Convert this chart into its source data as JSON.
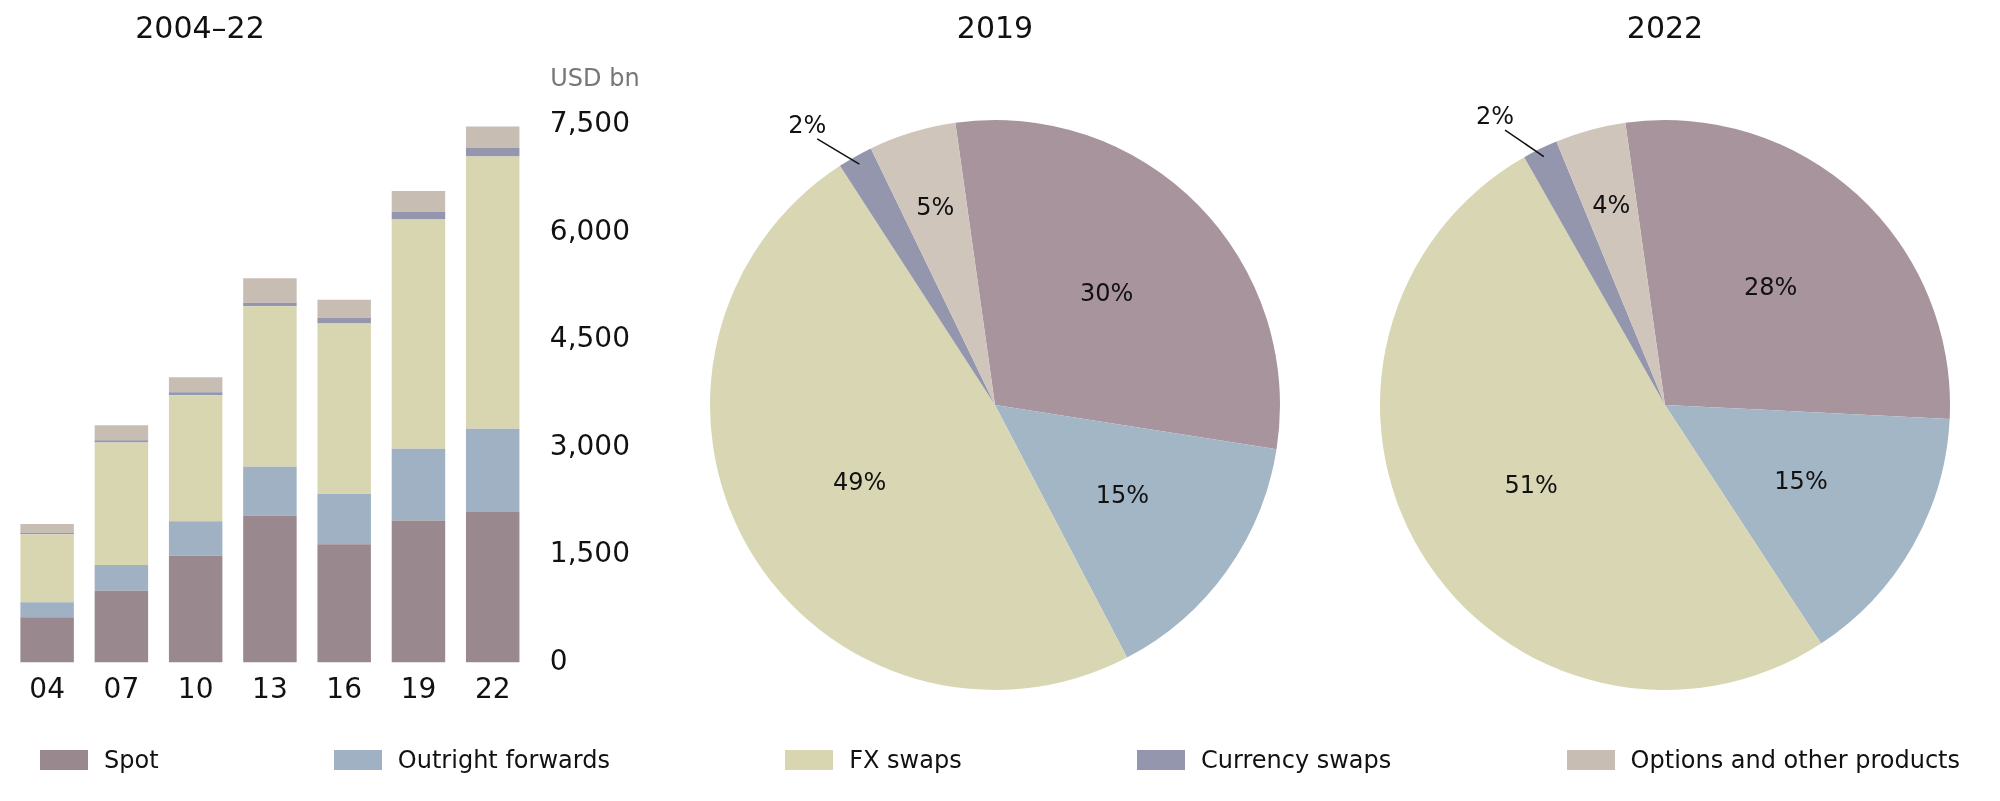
{
  "chart_data": [
    {
      "type": "bar",
      "title": "2004–22",
      "ylabel": "USD bn",
      "categories": [
        "04",
        "07",
        "10",
        "13",
        "16",
        "19",
        "22"
      ],
      "stacked": true,
      "ylim": [
        0,
        7500
      ],
      "yticks": [
        0,
        {
          "value": 1500,
          "label": "1,500"
        },
        {
          "value": 3000,
          "label": "3,000"
        },
        {
          "value": 4500,
          "label": "4,500"
        },
        {
          "value": 6000,
          "label": "6,000"
        },
        {
          "value": 7500,
          "label": "7,500"
        }
      ],
      "grid": false,
      "legend": "bottom",
      "series": [
        {
          "name": "Spot",
          "color": "#9a888f",
          "values": [
            630,
            1000,
            1490,
            2050,
            1650,
            1980,
            2100
          ]
        },
        {
          "name": "Outright forwards",
          "color": "#9fb1c2",
          "values": [
            210,
            360,
            480,
            680,
            700,
            1000,
            1160
          ]
        },
        {
          "name": "FX swaps",
          "color": "#d8d6b0",
          "values": [
            950,
            1710,
            1760,
            2240,
            2380,
            3200,
            3800
          ]
        },
        {
          "name": "Currency swaps",
          "color": "#9396ad",
          "values": [
            20,
            30,
            40,
            50,
            80,
            110,
            120
          ]
        },
        {
          "name": "Options and other products",
          "color": "#c8bdb3",
          "values": [
            120,
            210,
            210,
            340,
            250,
            290,
            300
          ]
        }
      ]
    },
    {
      "type": "pie",
      "title": "2019",
      "categories": [
        null,
        null,
        null,
        null,
        null
      ],
      "values": [
        30,
        15,
        49,
        2,
        5
      ],
      "value_labels": [
        "30%",
        "15%",
        "49%",
        "2%",
        "5%"
      ],
      "colors": [
        "#a8949c",
        "#a3b6c6",
        "#d9d7b3",
        "#9396ad",
        "#d0c5ba"
      ]
    },
    {
      "type": "pie",
      "title": "2022",
      "categories": [
        null,
        null,
        null,
        null,
        null
      ],
      "values": [
        28,
        15,
        51,
        2,
        4
      ],
      "value_labels": [
        "28%",
        "15%",
        "51%",
        "2%",
        "4%"
      ],
      "colors": [
        "#a8949c",
        "#a3b6c6",
        "#d9d7b3",
        "#9396ad",
        "#d0c5ba"
      ]
    }
  ]
}
